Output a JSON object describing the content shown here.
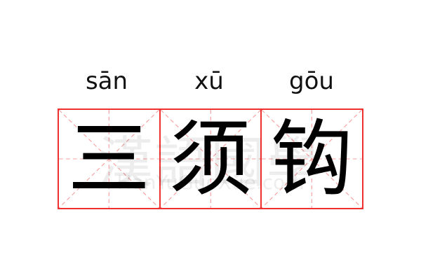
{
  "entries": [
    {
      "pinyin": "sān",
      "character": "三"
    },
    {
      "pinyin": "xū",
      "character": "须"
    },
    {
      "pinyin": "gōu",
      "character": "钩"
    }
  ],
  "watermark": {
    "chinese": "漢語國學",
    "site": "HanYuGuoXue.com"
  },
  "colors": {
    "grid_border": "#f03030",
    "guide_lines": "#f6a0a0"
  }
}
